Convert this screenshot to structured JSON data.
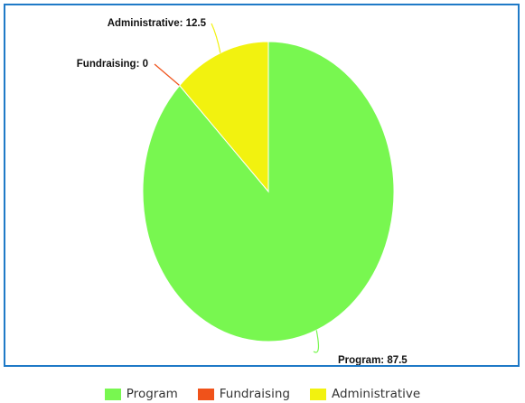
{
  "chart_data": {
    "type": "pie",
    "title": "",
    "slices": [
      {
        "label": "Program",
        "value": 87.5,
        "color": "#78f750",
        "data_label": "Program: 87.5"
      },
      {
        "label": "Fundraising",
        "value": 0,
        "color": "#f0521a",
        "data_label": "Fundraising: 0"
      },
      {
        "label": "Administrative",
        "value": 12.5,
        "color": "#f2f20f",
        "data_label": "Administrative: 12.5"
      }
    ],
    "legend_position": "bottom",
    "frame_color": "#1f7ac7"
  }
}
